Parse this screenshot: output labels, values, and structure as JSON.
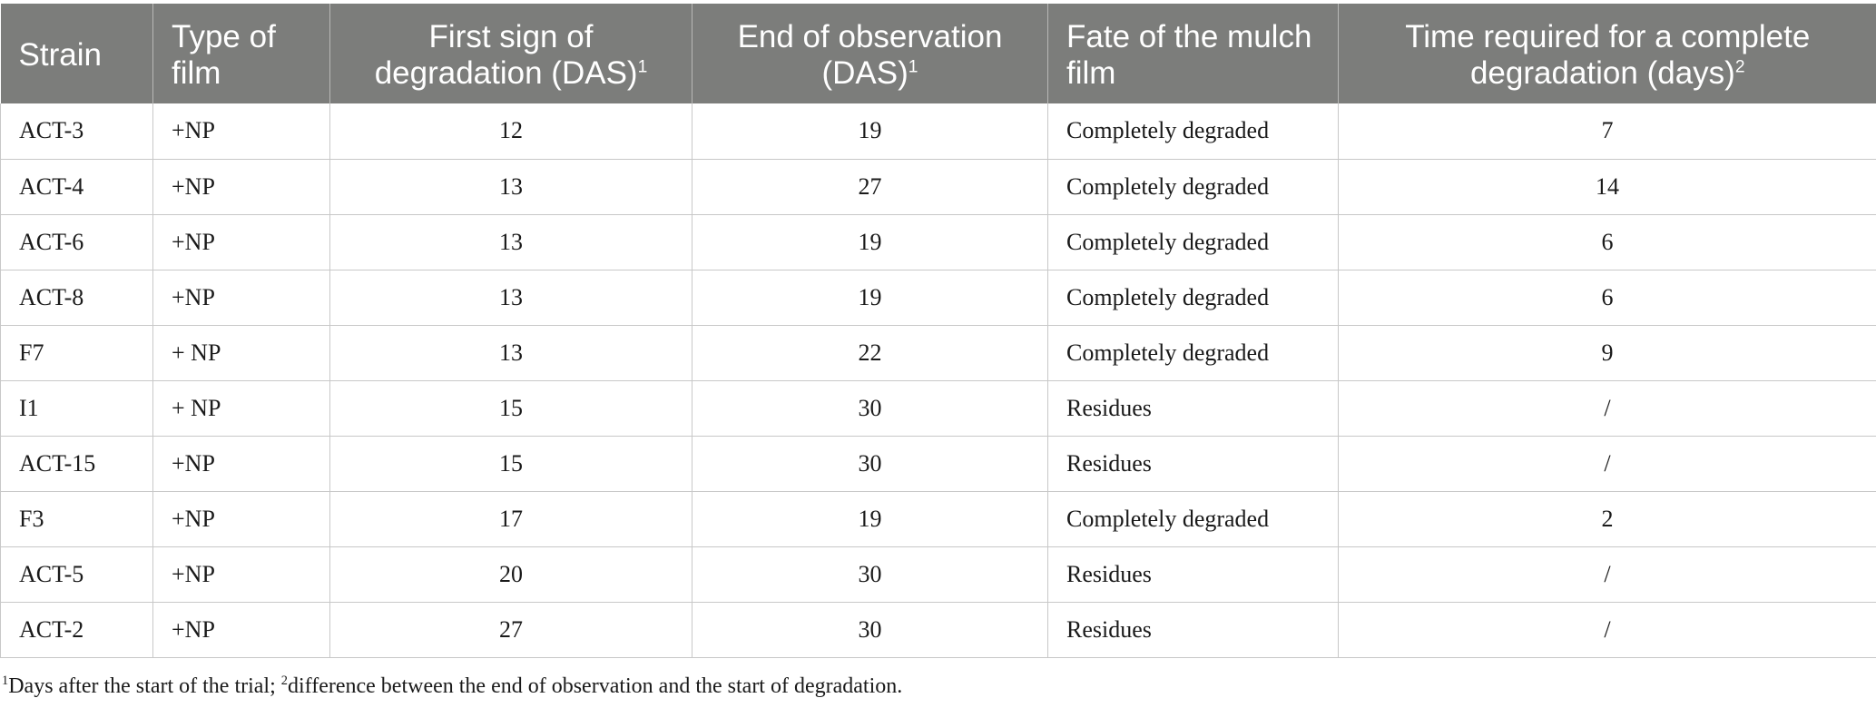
{
  "table": {
    "headers": [
      {
        "text": "Strain",
        "sup": ""
      },
      {
        "text": "Type of film",
        "sup": ""
      },
      {
        "text": "First sign of degradation (DAS)",
        "sup": "1"
      },
      {
        "text": "End of observation (DAS)",
        "sup": "1"
      },
      {
        "text": "Fate of the mulch film",
        "sup": ""
      },
      {
        "text": "Time required for a complete degradation (days)",
        "sup": "2"
      }
    ],
    "rows": [
      [
        "ACT-3",
        "+NP",
        "12",
        "19",
        "Completely degraded",
        "7"
      ],
      [
        "ACT-4",
        "+NP",
        "13",
        "27",
        "Completely degraded",
        "14"
      ],
      [
        "ACT-6",
        "+NP",
        "13",
        "19",
        "Completely degraded",
        "6"
      ],
      [
        "ACT-8",
        "+NP",
        "13",
        "19",
        "Completely degraded",
        "6"
      ],
      [
        "F7",
        "+ NP",
        "13",
        "22",
        "Completely degraded",
        "9"
      ],
      [
        "I1",
        "+ NP",
        "15",
        "30",
        "Residues",
        "/"
      ],
      [
        "ACT-15",
        "+NP",
        "15",
        "30",
        "Residues",
        "/"
      ],
      [
        "F3",
        "+NP",
        "17",
        "19",
        "Completely degraded",
        "2"
      ],
      [
        "ACT-5",
        "+NP",
        "20",
        "30",
        "Residues",
        "/"
      ],
      [
        "ACT-2",
        "+NP",
        "27",
        "30",
        "Residues",
        "/"
      ]
    ]
  },
  "footnote": {
    "sup1": "1",
    "text1": "Days after the start of the trial; ",
    "sup2": "2",
    "text2": "difference between the end of observation and the start of degradation."
  },
  "colors": {
    "header_bg": "#7c7d7b",
    "header_text": "#ffffff",
    "grid": "#c8c8c8"
  }
}
